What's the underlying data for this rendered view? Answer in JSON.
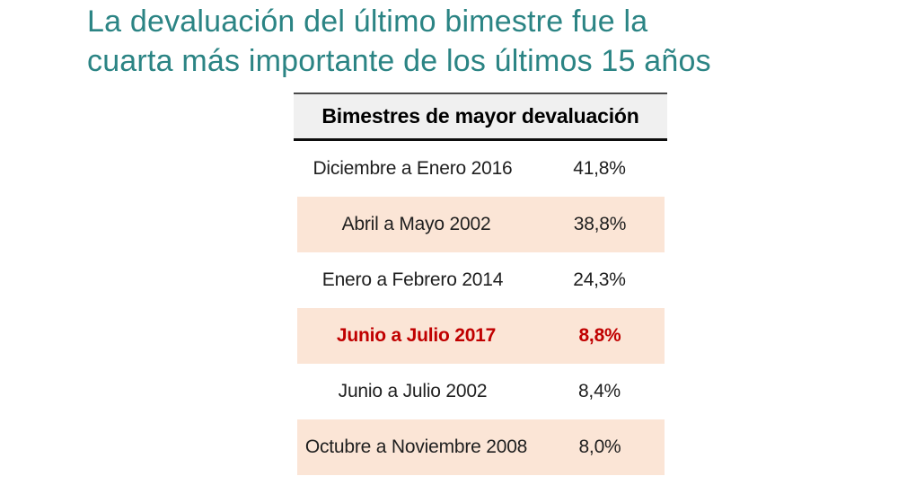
{
  "theme": {
    "teal": "#2b8484",
    "peach": "#fbe5d6",
    "header-bg": "#f0f0f0",
    "red": "#c00000",
    "ink": "#1f1f1f"
  },
  "page": {
    "title_line1": "La devaluación del último bimestre fue la",
    "title_line2": "cuarta más importante de los últimos 15 años"
  },
  "table": {
    "header_label": "Bimestres de mayor devaluación",
    "rows": [
      {
        "period": "Diciembre a Enero 2016",
        "value": "41,8%"
      },
      {
        "period": "Abril a Mayo 2002",
        "value": "38,8%"
      },
      {
        "period": "Enero a Febrero 2014",
        "value": "24,3%"
      },
      {
        "period": "Junio a Julio 2017",
        "value": "8,8%"
      },
      {
        "period": "Junio a Julio 2002",
        "value": "8,4%"
      },
      {
        "period": "Octubre a Noviembre 2008",
        "value": "8,0%"
      }
    ]
  },
  "chart_data": {
    "type": "table",
    "title": "Bimestres de mayor devaluación",
    "columns": [
      "Bimestre",
      "Devaluación"
    ],
    "categories": [
      "Diciembre a Enero 2016",
      "Abril a Mayo 2002",
      "Enero a Febrero 2014",
      "Junio a Julio 2017",
      "Junio a Julio 2002",
      "Octubre a Noviembre 2008"
    ],
    "values": [
      41.8,
      38.8,
      24.3,
      8.8,
      8.4,
      8.0
    ],
    "value_labels": [
      "41,8%",
      "38,8%",
      "24,3%",
      "8,8%",
      "8,4%",
      "8,0%"
    ],
    "highlighted_category": "Junio a Julio 2017",
    "highlight_color": "#c00000",
    "row_shading": "alternating rows 2,4,6 shaded #fbe5d6"
  }
}
